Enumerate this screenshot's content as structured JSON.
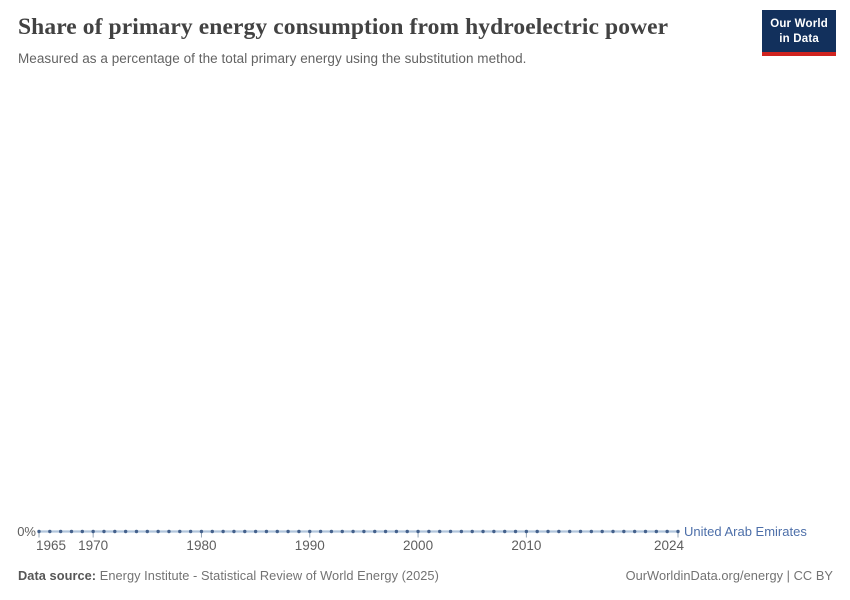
{
  "header": {
    "title": "Share of primary energy consumption from hydroelectric power",
    "subtitle": "Measured as a percentage of the total primary energy using the substitution method."
  },
  "logo": {
    "line1": "Our World",
    "line2": "in Data",
    "bg_color": "#12305c",
    "accent_color": "#d0231f"
  },
  "chart_data": {
    "type": "line",
    "title": "Share of primary energy consumption from hydroelectric power",
    "subtitle": "Measured as a percentage of the total primary energy using the substitution method.",
    "x_range": [
      1965,
      2024
    ],
    "x": [
      1965,
      1966,
      1967,
      1968,
      1969,
      1970,
      1971,
      1972,
      1973,
      1974,
      1975,
      1976,
      1977,
      1978,
      1979,
      1980,
      1981,
      1982,
      1983,
      1984,
      1985,
      1986,
      1987,
      1988,
      1989,
      1990,
      1991,
      1992,
      1993,
      1994,
      1995,
      1996,
      1997,
      1998,
      1999,
      2000,
      2001,
      2002,
      2003,
      2004,
      2005,
      2006,
      2007,
      2008,
      2009,
      2010,
      2011,
      2012,
      2013,
      2014,
      2015,
      2016,
      2017,
      2018,
      2019,
      2020,
      2021,
      2022,
      2023,
      2024
    ],
    "series": [
      {
        "name": "United Arab Emirates",
        "values": [
          0,
          0,
          0,
          0,
          0,
          0,
          0,
          0,
          0,
          0,
          0,
          0,
          0,
          0,
          0,
          0,
          0,
          0,
          0,
          0,
          0,
          0,
          0,
          0,
          0,
          0,
          0,
          0,
          0,
          0,
          0,
          0,
          0,
          0,
          0,
          0,
          0,
          0,
          0,
          0,
          0,
          0,
          0,
          0,
          0,
          0,
          0,
          0,
          0,
          0,
          0,
          0,
          0,
          0,
          0,
          0,
          0,
          0,
          0,
          0
        ]
      }
    ],
    "x_ticks": [
      1965,
      1970,
      1980,
      1990,
      2000,
      2010,
      2024
    ],
    "y_ticks": [
      {
        "value": 0,
        "label": "0%"
      }
    ],
    "ylim": [
      0,
      0
    ],
    "unit": "%",
    "grid": false,
    "marker": "dot",
    "legend_position": "right-of-line-end",
    "colors": {
      "series_label": "#4d6fa9",
      "dot": "#44618c",
      "line": "#b1c5dc",
      "tick": "#94a4b6"
    }
  },
  "footer": {
    "data_source_label": "Data source:",
    "data_source": "Energy Institute - Statistical Review of World Energy (2025)",
    "rights": "OurWorldinData.org/energy | CC BY"
  }
}
